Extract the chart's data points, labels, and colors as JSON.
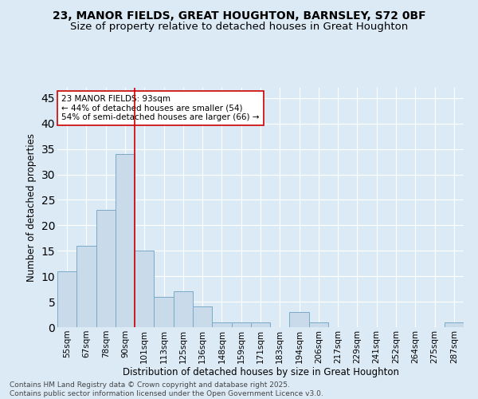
{
  "title1": "23, MANOR FIELDS, GREAT HOUGHTON, BARNSLEY, S72 0BF",
  "title2": "Size of property relative to detached houses in Great Houghton",
  "xlabel": "Distribution of detached houses by size in Great Houghton",
  "ylabel": "Number of detached properties",
  "categories": [
    "55sqm",
    "67sqm",
    "78sqm",
    "90sqm",
    "101sqm",
    "113sqm",
    "125sqm",
    "136sqm",
    "148sqm",
    "159sqm",
    "171sqm",
    "183sqm",
    "194sqm",
    "206sqm",
    "217sqm",
    "229sqm",
    "241sqm",
    "252sqm",
    "264sqm",
    "275sqm",
    "287sqm"
  ],
  "values": [
    11,
    16,
    23,
    34,
    15,
    6,
    7,
    4,
    1,
    1,
    1,
    0,
    3,
    1,
    0,
    0,
    0,
    0,
    0,
    0,
    1
  ],
  "bar_color": "#c9daea",
  "bar_edge_color": "#7aaac8",
  "background_color": "#dceaf6",
  "grid_color": "#ffffff",
  "vline_x": 3.5,
  "vline_color": "#cc0000",
  "annotation_text": "23 MANOR FIELDS: 93sqm\n← 44% of detached houses are smaller (54)\n54% of semi-detached houses are larger (66) →",
  "annotation_box_facecolor": "#ffffff",
  "annotation_box_edgecolor": "#cc0000",
  "ylim": [
    0,
    47
  ],
  "yticks": [
    0,
    5,
    10,
    15,
    20,
    25,
    30,
    35,
    40,
    45
  ],
  "footer": "Contains HM Land Registry data © Crown copyright and database right 2025.\nContains public sector information licensed under the Open Government Licence v3.0.",
  "title1_fontsize": 10,
  "title2_fontsize": 9.5,
  "axis_label_fontsize": 8.5,
  "tick_fontsize": 7.5,
  "annotation_fontsize": 7.5,
  "footer_fontsize": 6.5
}
